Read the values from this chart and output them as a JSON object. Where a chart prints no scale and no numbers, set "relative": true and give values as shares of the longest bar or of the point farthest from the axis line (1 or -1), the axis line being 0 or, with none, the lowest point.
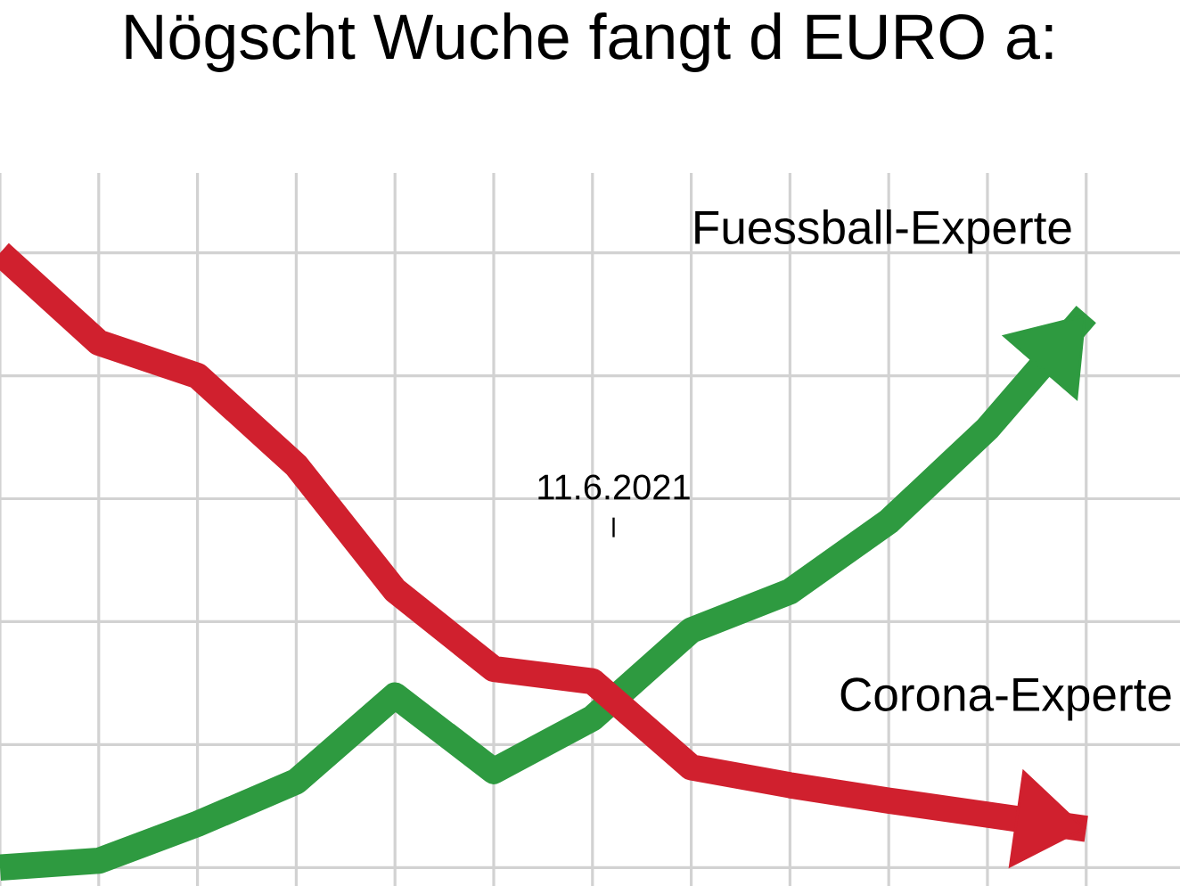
{
  "chart_data": {
    "type": "line",
    "title": "Nögscht Wuche fangt d EURO a:",
    "relative": true,
    "grid": true,
    "legend": false,
    "marker": "none",
    "line_style": "solid",
    "tick_labels": false,
    "categories": [
      null,
      null,
      null,
      null,
      null,
      null,
      null,
      null,
      null,
      null,
      null,
      null
    ],
    "series": [
      {
        "name": "Fuessball-Experte",
        "color": "#2e9a40",
        "values": [
          0,
          0.011,
          0.071,
          0.14,
          0.28,
          0.157,
          0.243,
          0.386,
          0.449,
          0.563,
          0.714,
          0.9
        ]
      },
      {
        "name": "Corona-Experte",
        "color": "#d0202e",
        "values": [
          1.0,
          0.854,
          0.8,
          0.654,
          0.451,
          0.323,
          0.303,
          0.163,
          0.134,
          0.109,
          0.086,
          0.063
        ]
      }
    ],
    "annotations": [
      "11.6.2021"
    ]
  }
}
